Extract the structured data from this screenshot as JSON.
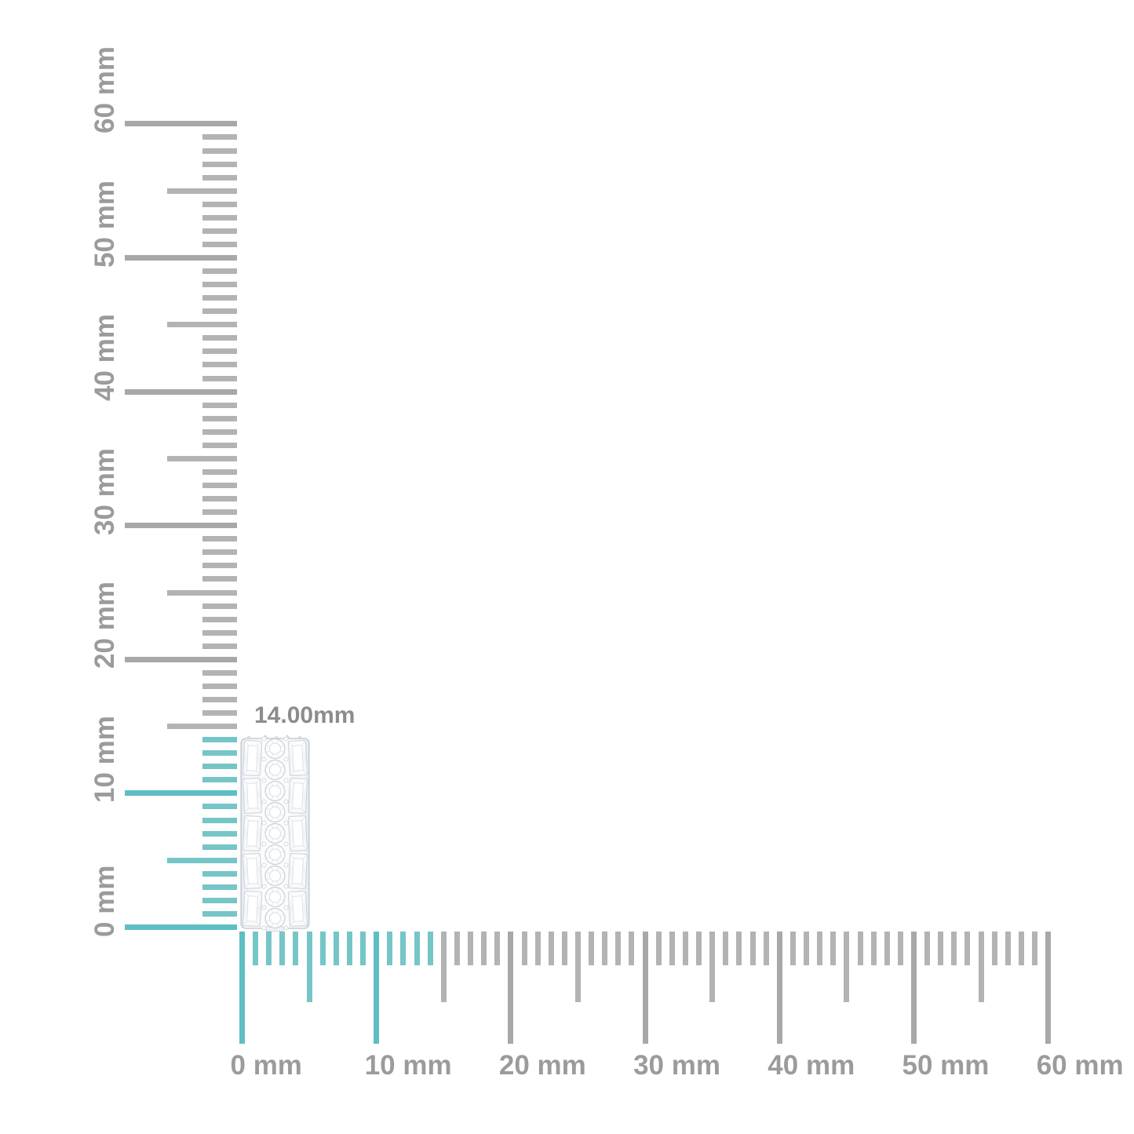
{
  "image": {
    "background": "#ffffff"
  },
  "product": {
    "description": "white gold band with a center row of round diamonds flanked by columns of baguette diamonds",
    "measurement_label": "14.00mm",
    "measurement_label_color": "#8c8c8c",
    "measured_height_mm": 14,
    "stone_columns": {
      "center_round_count": 9,
      "side_baguette_count": 5
    }
  },
  "rulers": {
    "unit": "mm",
    "min_mm": 0,
    "max_mm": 60,
    "minor_step_mm": 1,
    "medium_step_mm": 5,
    "major_step_mm": 10,
    "highlight_to_mm": 14,
    "major_labels": [
      "0 mm",
      "10 mm",
      "20 mm",
      "30 mm",
      "40 mm",
      "50 mm",
      "60 mm"
    ],
    "colors": {
      "tick_minor_gray": "#b3b3b3",
      "tick_major_gray": "#a8a8a8",
      "tick_minor_teal": "#76c5c7",
      "tick_major_teal": "#5dbfc2",
      "label_text": "#9b9b9b"
    }
  }
}
